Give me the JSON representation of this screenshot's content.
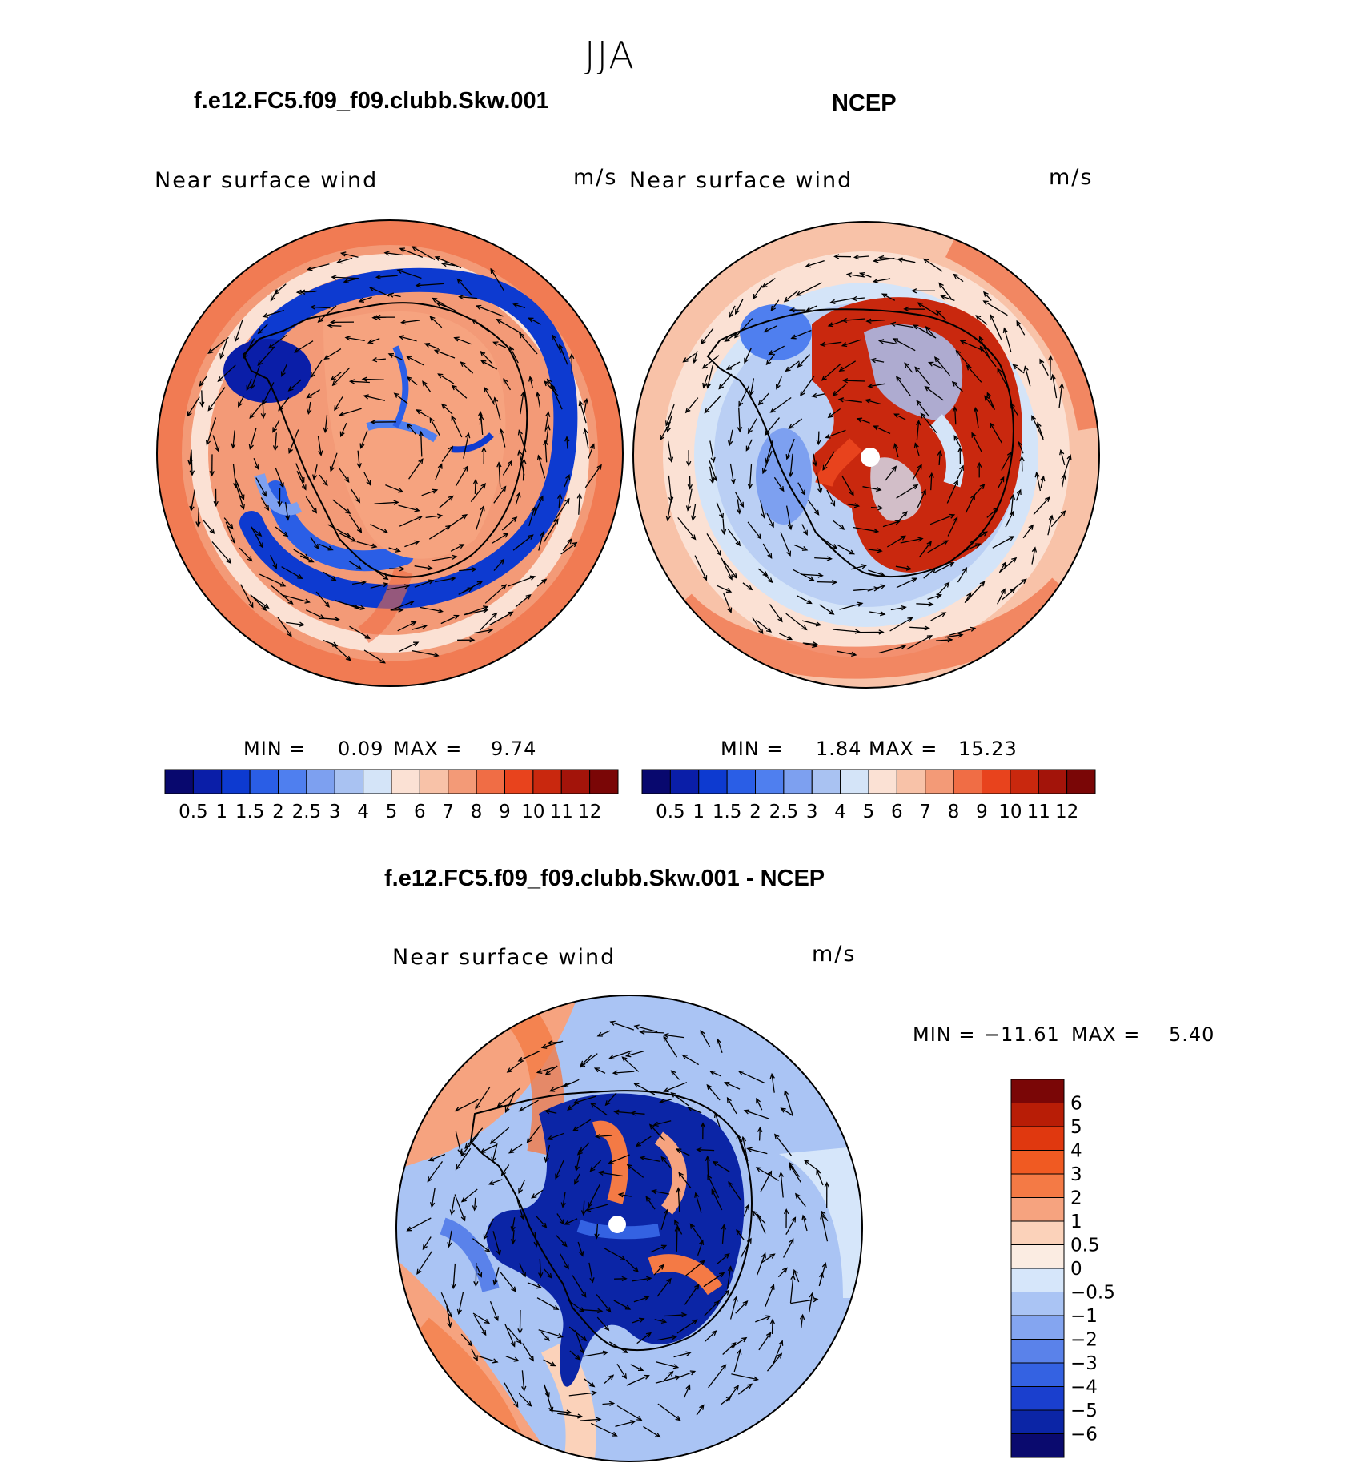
{
  "title": "JJA",
  "panels": [
    {
      "title": "f.e12.FC5.f09_f09.clubb.Skw.001",
      "subtitle": "Near surface wind",
      "units": "m/s",
      "min_label": "MIN =",
      "min_value": "0.09",
      "max_label": "MAX =",
      "max_value": "9.74"
    },
    {
      "title": "NCEP",
      "subtitle": "Near surface wind",
      "units": "m/s",
      "min_label": "MIN =",
      "min_value": "1.84",
      "max_label": "MAX =",
      "max_value": "15.23"
    },
    {
      "title": "f.e12.FC5.f09_f09.clubb.Skw.001 - NCEP",
      "subtitle": "Near surface wind",
      "units": "m/s",
      "min_label": "MIN =",
      "min_value": "−11.61",
      "max_label": "MAX =",
      "max_value": "5.40"
    }
  ],
  "colorbar_abs": {
    "labels": [
      "0.5",
      "1",
      "1.5",
      "2",
      "2.5",
      "3",
      "4",
      "5",
      "6",
      "7",
      "8",
      "9",
      "10",
      "11",
      "12"
    ],
    "colors": [
      "#08086e",
      "#0a1ea8",
      "#0d3ad0",
      "#2a5ee6",
      "#4f7fef",
      "#7da0f0",
      "#a9c2f2",
      "#d4e4f8",
      "#fbe1d4",
      "#f8c2a8",
      "#f39a77",
      "#f06d45",
      "#e8431d",
      "#c9280e",
      "#a3140a",
      "#7a0606"
    ]
  },
  "colorbar_diff": {
    "labels": [
      "6",
      "5",
      "4",
      "3",
      "2",
      "1",
      "0.5",
      "0",
      "−0.5",
      "−1",
      "−2",
      "−3",
      "−4",
      "−5",
      "−6"
    ],
    "colors": [
      "#7a0606",
      "#b81d06",
      "#e0380f",
      "#f05a22",
      "#f47a45",
      "#f6a37f",
      "#fbd2ba",
      "#fbece2",
      "#d6e6fa",
      "#aac4f4",
      "#84a5f0",
      "#5a82ea",
      "#3462e2",
      "#1a3fce",
      "#0b25a6",
      "#0a0a6e"
    ]
  },
  "chart_data": [
    {
      "type": "heatmap",
      "projection": "south polar stereographic",
      "title": "f.e12.FC5.f09_f09.clubb.Skw.001",
      "variable": "Near surface wind",
      "units": "m/s",
      "min": 0.09,
      "max": 9.74,
      "levels": [
        0.5,
        1,
        1.5,
        2,
        2.5,
        3,
        4,
        5,
        6,
        7,
        8,
        9,
        10,
        11,
        12
      ],
      "vectors": true
    },
    {
      "type": "heatmap",
      "projection": "south polar stereographic",
      "title": "NCEP",
      "variable": "Near surface wind",
      "units": "m/s",
      "min": 1.84,
      "max": 15.23,
      "levels": [
        0.5,
        1,
        1.5,
        2,
        2.5,
        3,
        4,
        5,
        6,
        7,
        8,
        9,
        10,
        11,
        12
      ],
      "vectors": true
    },
    {
      "type": "heatmap",
      "projection": "south polar stereographic",
      "title": "f.e12.FC5.f09_f09.clubb.Skw.001 - NCEP",
      "variable": "Near surface wind",
      "units": "m/s",
      "min": -11.61,
      "max": 5.4,
      "levels": [
        -6,
        -5,
        -4,
        -3,
        -2,
        -1,
        -0.5,
        0,
        0.5,
        1,
        2,
        3,
        4,
        5,
        6
      ],
      "vectors": true
    }
  ]
}
